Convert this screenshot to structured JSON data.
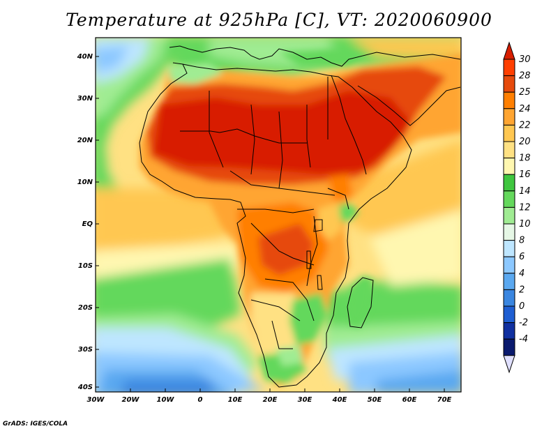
{
  "title": "Temperature at 925hPa [C], VT: 2020060900",
  "credit": "GrADS: IGES/COLA",
  "map": {
    "lat_range": [
      -40,
      45
    ],
    "lon_range": [
      -30,
      75
    ],
    "lat_ticks": [
      "40N",
      "30N",
      "20N",
      "10N",
      "EQ",
      "10S",
      "20S",
      "30S",
      "40S"
    ],
    "lon_ticks": [
      "30W",
      "20W",
      "10W",
      "0",
      "10E",
      "20E",
      "30E",
      "40E",
      "50E",
      "60E",
      "70E"
    ]
  },
  "colorbar": {
    "labels": [
      "30",
      "28",
      "25",
      "24",
      "22",
      "20",
      "18",
      "16",
      "14",
      "12",
      "10",
      "8",
      "6",
      "4",
      "2",
      "0",
      "-2",
      "-4"
    ],
    "colors": [
      "#ff3f00",
      "#e64a0c",
      "#ff7f00",
      "#ffa531",
      "#ffc751",
      "#ffe183",
      "#fff7b0",
      "#3fc63f",
      "#64d85c",
      "#a0ec93",
      "#e6f7e6",
      "#bee6ff",
      "#8cc8ff",
      "#5aa8f0",
      "#3a86e0",
      "#1e5ed2",
      "#1030a0",
      "#0a1a6e"
    ],
    "top_color": "#d81e00",
    "bottom_color": "#e0e0ff"
  }
}
